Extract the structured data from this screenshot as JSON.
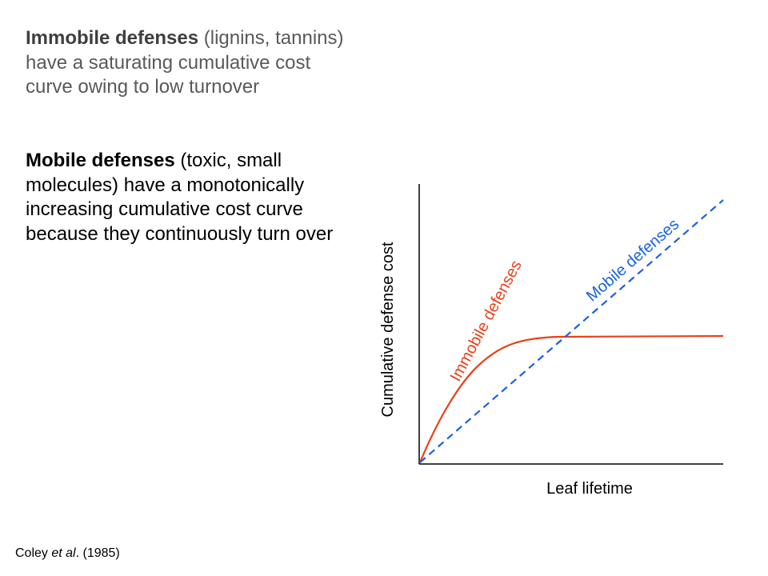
{
  "text": {
    "immobile": {
      "heading": "Immobile defenses",
      "body": " (lignins, tannins) have a saturating cumulative cost curve owing to low turnover"
    },
    "mobile": {
      "heading": "Mobile defenses",
      "body": " (toxic, small molecules) have a monotonically increasing cumulative cost curve because they continuously turn over"
    }
  },
  "figure": {
    "xlabel": "Leaf lifetime",
    "ylabel": "Cumulative  defense cost",
    "curves": {
      "immobile": {
        "label": "Immobile defenses",
        "color": "#e8411a",
        "shape": "saturating"
      },
      "mobile": {
        "label": "Mobile defenses",
        "color": "#1a62e0",
        "shape": "linear",
        "style": "dashed"
      }
    },
    "axis_color": "#000000"
  },
  "citation": {
    "authors": "Coley ",
    "etal": "et al",
    "rest": ". (1985)"
  }
}
